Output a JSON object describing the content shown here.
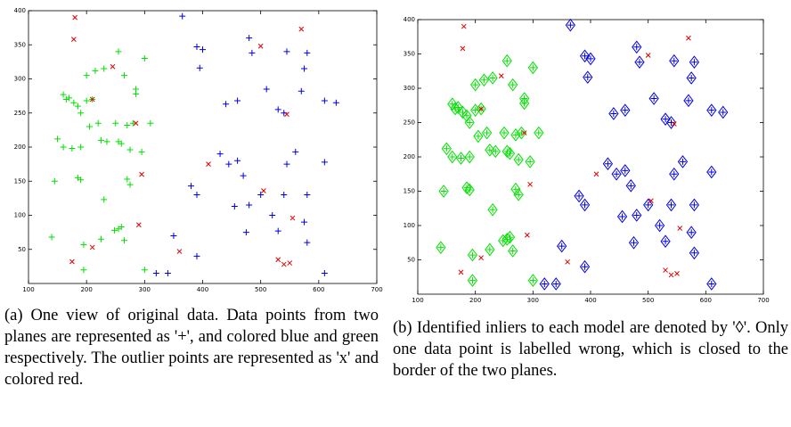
{
  "chart_data": [
    {
      "type": "scatter",
      "caption": "(a) One view of original data. Data points from two planes are represented as '+', and colored blue and green respectively. The outlier points are represented as 'x' and colored red.",
      "xlim": [
        100,
        700
      ],
      "xticks": [
        100,
        200,
        300,
        400,
        500,
        600,
        700
      ],
      "ylim": [
        0,
        400
      ],
      "yticks": [
        50,
        100,
        150,
        200,
        250,
        300,
        350,
        400
      ],
      "series": [
        {
          "color": "#00e000",
          "markers": [
            "plus"
          ],
          "x": [
            160,
            165,
            170,
            178,
            185,
            190,
            200,
            210,
            220,
            205,
            150,
            160,
            175,
            190,
            145,
            185,
            190,
            230,
            255,
            260,
            225,
            235,
            250,
            270,
            275,
            295,
            285,
            285,
            230,
            255,
            265,
            300,
            200,
            215,
            280,
            310,
            140,
            195,
            195,
            225,
            255,
            260,
            300,
            265,
            270,
            275,
            248
          ],
          "values": [
            277,
            270,
            272,
            265,
            260,
            250,
            268,
            270,
            235,
            230,
            212,
            200,
            198,
            200,
            150,
            155,
            152,
            123,
            208,
            205,
            210,
            208,
            235,
            232,
            196,
            193,
            285,
            278,
            315,
            340,
            305,
            330,
            305,
            312,
            235,
            235,
            68,
            57,
            20,
            65,
            80,
            83,
            20,
            63,
            153,
            145,
            78
          ]
        },
        {
          "color": "#0000e0",
          "markers": [
            "plus"
          ],
          "x": [
            365,
            390,
            400,
            395,
            440,
            460,
            480,
            485,
            510,
            530,
            540,
            545,
            575,
            580,
            570,
            610,
            630,
            430,
            445,
            460,
            470,
            480,
            455,
            500,
            520,
            540,
            545,
            560,
            580,
            610,
            380,
            390,
            350,
            390,
            320,
            340,
            530,
            575,
            580,
            610,
            475
          ],
          "values": [
            392,
            347,
            343,
            316,
            263,
            268,
            360,
            338,
            285,
            255,
            250,
            340,
            315,
            338,
            282,
            268,
            265,
            190,
            175,
            180,
            158,
            115,
            113,
            130,
            100,
            130,
            175,
            193,
            130,
            178,
            143,
            130,
            70,
            40,
            15,
            15,
            77,
            90,
            60,
            15,
            75
          ]
        },
        {
          "color": "#e00000",
          "markers": [
            "cross"
          ],
          "x": [
            180,
            178,
            245,
            210,
            175,
            210,
            290,
            295,
            285,
            360,
            410,
            500,
            545,
            570,
            505,
            555,
            530,
            540,
            550
          ],
          "values": [
            390,
            358,
            318,
            270,
            32,
            53,
            86,
            160,
            235,
            47,
            175,
            348,
            248,
            373,
            136,
            96,
            35,
            28,
            30
          ]
        }
      ]
    },
    {
      "type": "scatter",
      "caption": "(b) Identified inliers to each model are denoted by '◊'. Only one data point is labelled wrong, which is closed to the border of the two planes.",
      "xlim": [
        100,
        700
      ],
      "xticks": [
        100,
        200,
        300,
        400,
        500,
        600,
        700
      ],
      "ylim": [
        0,
        400
      ],
      "yticks": [
        50,
        100,
        150,
        200,
        250,
        300,
        350,
        400
      ],
      "series": [
        {
          "color": "#00e000",
          "markers": [
            "plus",
            "diamond"
          ],
          "x": [
            160,
            165,
            170,
            178,
            185,
            190,
            200,
            210,
            220,
            205,
            150,
            160,
            175,
            190,
            145,
            185,
            190,
            230,
            255,
            260,
            225,
            235,
            250,
            270,
            275,
            295,
            285,
            285,
            230,
            255,
            265,
            300,
            200,
            215,
            280,
            310,
            140,
            195,
            195,
            225,
            255,
            260,
            300,
            265,
            270,
            275,
            248
          ],
          "values": [
            277,
            270,
            272,
            265,
            260,
            250,
            268,
            270,
            235,
            230,
            212,
            200,
            198,
            200,
            150,
            155,
            152,
            123,
            208,
            205,
            210,
            208,
            235,
            232,
            196,
            193,
            285,
            278,
            315,
            340,
            305,
            330,
            305,
            312,
            235,
            235,
            68,
            57,
            20,
            65,
            80,
            83,
            20,
            63,
            153,
            145,
            78
          ]
        },
        {
          "color": "#0000e0",
          "markers": [
            "plus",
            "diamond"
          ],
          "x": [
            365,
            390,
            400,
            395,
            440,
            460,
            480,
            485,
            510,
            530,
            540,
            545,
            575,
            580,
            570,
            610,
            630,
            430,
            445,
            460,
            470,
            480,
            455,
            500,
            520,
            540,
            545,
            560,
            580,
            610,
            380,
            390,
            350,
            390,
            320,
            340,
            530,
            575,
            580,
            610,
            475
          ],
          "values": [
            392,
            347,
            343,
            316,
            263,
            268,
            360,
            338,
            285,
            255,
            250,
            340,
            315,
            338,
            282,
            268,
            265,
            190,
            175,
            180,
            158,
            115,
            113,
            130,
            100,
            130,
            175,
            193,
            130,
            178,
            143,
            130,
            70,
            40,
            15,
            15,
            77,
            90,
            60,
            15,
            75
          ]
        },
        {
          "color": "#e00000",
          "markers": [
            "cross"
          ],
          "x": [
            180,
            178,
            245,
            210,
            175,
            210,
            290,
            295,
            285,
            360,
            410,
            500,
            545,
            570,
            505,
            555,
            530,
            540,
            550
          ],
          "values": [
            390,
            358,
            318,
            270,
            32,
            53,
            86,
            160,
            235,
            47,
            175,
            348,
            248,
            373,
            136,
            96,
            35,
            28,
            30
          ]
        }
      ]
    }
  ]
}
